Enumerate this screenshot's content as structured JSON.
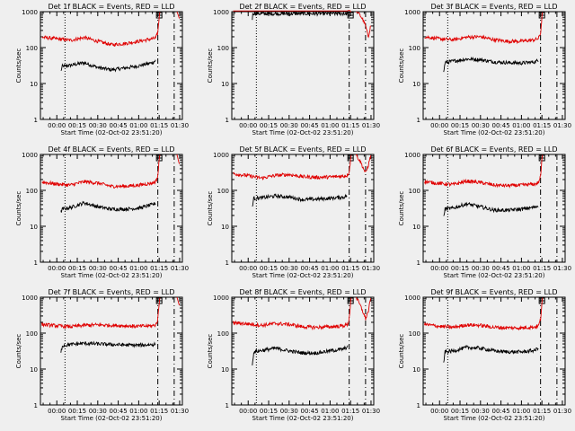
{
  "shared": {
    "xlabel": "Start Time (02-Oct-02 23:51:20)",
    "ylabel": "Counts/sec",
    "ytick_labels": [
      "1",
      "10",
      "100",
      "1000"
    ],
    "xtick_labels": [
      "00:00",
      "00:15",
      "00:30",
      "00:45",
      "01:00",
      "01:15",
      "01:30"
    ],
    "colors": {
      "events": "#000000",
      "lld": "#e00000",
      "background": "#efefef"
    }
  },
  "chart_data": [
    {
      "type": "line",
      "title": "Det 1f BLACK = Events, RED = LLD",
      "xlabel": "Start Time (02-Oct-02 23:51:20)",
      "ylabel": "Counts/sec",
      "x_unit": "minutes after 00:00",
      "x_range": [
        -12,
        92
      ],
      "ylim": [
        1,
        1000
      ],
      "yscale": "log",
      "markers": {
        "dotted": 6,
        "dashed": [
          74,
          86
        ]
      },
      "saa_box_x": 75,
      "series": [
        {
          "name": "Events",
          "color": "#000000",
          "x": [
            3,
            4,
            10,
            20,
            30,
            40,
            50,
            60,
            70,
            72.5
          ],
          "y": [
            22,
            30,
            32,
            38,
            28,
            24,
            27,
            31,
            38,
            44
          ]
        },
        {
          "name": "LLD",
          "color": "#e00000",
          "x": [
            -11,
            0,
            10,
            20,
            30,
            40,
            50,
            60,
            70,
            72.5,
            74,
            75,
            75.5
          ],
          "y": [
            195,
            175,
            160,
            190,
            150,
            120,
            130,
            150,
            175,
            185,
            260,
            700,
            1000
          ]
        },
        {
          "name": "LLD",
          "color": "#e00000",
          "x": [
            88,
            89,
            90
          ],
          "y": [
            1000,
            800,
            600
          ]
        }
      ]
    },
    {
      "type": "line",
      "title": "Det 2f BLACK = Events, RED = LLD",
      "xlabel": "Start Time (02-Oct-02 23:51:20)",
      "ylabel": "Counts/sec",
      "x_unit": "minutes after 00:00",
      "x_range": [
        -12,
        92
      ],
      "ylim": [
        1,
        1000
      ],
      "yscale": "log",
      "markers": {
        "dotted": 6,
        "dashed": [
          74,
          86
        ]
      },
      "saa_box_x": 75,
      "series": [
        {
          "name": "Events",
          "color": "#000000",
          "x": [
            3,
            3.5,
            10,
            20,
            30,
            40,
            50,
            60,
            70,
            73
          ],
          "y": [
            640,
            900,
            880,
            880,
            880,
            880,
            880,
            880,
            880,
            880
          ]
        },
        {
          "name": "LLD",
          "color": "#e00000",
          "x": [
            -11,
            0,
            20,
            40,
            60,
            73,
            74,
            75,
            75.5
          ],
          "y": [
            1050,
            1050,
            1050,
            1050,
            1050,
            1050,
            1150,
            1000,
            1000
          ]
        },
        {
          "name": "LLD",
          "color": "#e00000",
          "x": [
            79,
            80,
            82,
            84,
            86,
            88,
            90
          ],
          "y": [
            1000,
            950,
            800,
            600,
            400,
            200,
            450
          ]
        }
      ]
    },
    {
      "type": "line",
      "title": "Det 3f BLACK = Events, RED = LLD",
      "xlabel": "Start Time (02-Oct-02 23:51:20)",
      "ylabel": "Counts/sec",
      "x_unit": "minutes after 00:00",
      "x_range": [
        -12,
        92
      ],
      "ylim": [
        1,
        1000
      ],
      "yscale": "log",
      "markers": {
        "dotted": 6,
        "dashed": [
          74,
          86
        ]
      },
      "saa_box_x": 75,
      "series": [
        {
          "name": "Events",
          "color": "#000000",
          "x": [
            3,
            4,
            10,
            20,
            30,
            40,
            50,
            60,
            70,
            72.5
          ],
          "y": [
            20,
            38,
            42,
            48,
            46,
            40,
            38,
            37,
            40,
            45
          ]
        },
        {
          "name": "LLD",
          "color": "#e00000",
          "x": [
            -11,
            0,
            10,
            20,
            30,
            40,
            50,
            60,
            70,
            72.5,
            74,
            75,
            75.5
          ],
          "y": [
            200,
            175,
            165,
            195,
            200,
            165,
            150,
            150,
            165,
            180,
            250,
            700,
            1000
          ]
        }
      ]
    },
    {
      "type": "line",
      "title": "Det 4f BLACK = Events, RED = LLD",
      "xlabel": "Start Time (02-Oct-02 23:51:20)",
      "ylabel": "Counts/sec",
      "x_unit": "minutes after 00:00",
      "x_range": [
        -12,
        92
      ],
      "ylim": [
        1,
        1000
      ],
      "yscale": "log",
      "markers": {
        "dotted": 6,
        "dashed": [
          74,
          86
        ]
      },
      "saa_box_x": 75,
      "series": [
        {
          "name": "Events",
          "color": "#000000",
          "x": [
            3,
            4,
            10,
            20,
            30,
            40,
            50,
            60,
            70,
            72.5
          ],
          "y": [
            25,
            30,
            33,
            45,
            35,
            30,
            30,
            32,
            40,
            44
          ]
        },
        {
          "name": "LLD",
          "color": "#e00000",
          "x": [
            -11,
            0,
            10,
            20,
            30,
            40,
            50,
            60,
            70,
            72.5,
            74,
            75,
            75.5
          ],
          "y": [
            170,
            150,
            140,
            175,
            160,
            130,
            130,
            140,
            160,
            175,
            250,
            700,
            1000
          ]
        },
        {
          "name": "LLD",
          "color": "#e00000",
          "x": [
            88,
            89,
            90
          ],
          "y": [
            1000,
            700,
            500
          ]
        }
      ]
    },
    {
      "type": "line",
      "title": "Det 5f BLACK = Events, RED = LLD",
      "xlabel": "Start Time (02-Oct-02 23:51:20)",
      "ylabel": "Counts/sec",
      "x_unit": "minutes after 00:00",
      "x_range": [
        -12,
        92
      ],
      "ylim": [
        1,
        1000
      ],
      "yscale": "log",
      "markers": {
        "dotted": 6,
        "dashed": [
          74,
          86
        ]
      },
      "saa_box_x": 75,
      "series": [
        {
          "name": "Events",
          "color": "#000000",
          "x": [
            3,
            4,
            10,
            20,
            30,
            40,
            50,
            60,
            70,
            72.5
          ],
          "y": [
            35,
            60,
            62,
            70,
            65,
            55,
            57,
            60,
            65,
            70
          ]
        },
        {
          "name": "LLD",
          "color": "#e00000",
          "x": [
            -11,
            0,
            10,
            20,
            30,
            40,
            50,
            60,
            70,
            72.5,
            74,
            75,
            75.5
          ],
          "y": [
            290,
            255,
            220,
            260,
            275,
            240,
            230,
            235,
            250,
            260,
            330,
            700,
            1000
          ]
        },
        {
          "name": "LLD",
          "color": "#e00000",
          "x": [
            79,
            80,
            82,
            84,
            86,
            88,
            90
          ],
          "y": [
            1000,
            850,
            650,
            450,
            300,
            500,
            1000
          ]
        }
      ]
    },
    {
      "type": "line",
      "title": "Det 6f BLACK = Events, RED = LLD",
      "xlabel": "Start Time (02-Oct-02 23:51:20)",
      "ylabel": "Counts/sec",
      "x_unit": "minutes after 00:00",
      "x_range": [
        -12,
        92
      ],
      "ylim": [
        1,
        1000
      ],
      "yscale": "log",
      "markers": {
        "dotted": 6,
        "dashed": [
          74,
          86
        ]
      },
      "saa_box_x": 75,
      "series": [
        {
          "name": "Events",
          "color": "#000000",
          "x": [
            3,
            4,
            10,
            20,
            30,
            40,
            50,
            60,
            70,
            72.5
          ],
          "y": [
            18,
            30,
            32,
            42,
            35,
            28,
            28,
            30,
            34,
            38
          ]
        },
        {
          "name": "LLD",
          "color": "#e00000",
          "x": [
            -11,
            0,
            10,
            20,
            30,
            40,
            50,
            60,
            70,
            72.5,
            74,
            75,
            75.5
          ],
          "y": [
            175,
            155,
            145,
            180,
            165,
            140,
            135,
            140,
            150,
            165,
            240,
            700,
            1000
          ]
        }
      ]
    },
    {
      "type": "line",
      "title": "Det 7f BLACK = Events, RED = LLD",
      "xlabel": "Start Time (02-Oct-02 23:51:20)",
      "ylabel": "Counts/sec",
      "x_unit": "minutes after 00:00",
      "x_range": [
        -12,
        92
      ],
      "ylim": [
        1,
        1000
      ],
      "yscale": "log",
      "markers": {
        "dotted": 6,
        "dashed": [
          74,
          86
        ]
      },
      "saa_box_x": 75,
      "series": [
        {
          "name": "Events",
          "color": "#000000",
          "x": [
            3,
            4,
            10,
            20,
            30,
            40,
            50,
            60,
            70,
            72.5
          ],
          "y": [
            28,
            45,
            48,
            52,
            50,
            48,
            47,
            46,
            48,
            50
          ]
        },
        {
          "name": "LLD",
          "color": "#e00000",
          "x": [
            -11,
            0,
            10,
            20,
            30,
            40,
            50,
            60,
            70,
            72.5,
            74,
            75,
            75.5
          ],
          "y": [
            175,
            160,
            150,
            165,
            170,
            165,
            160,
            155,
            160,
            170,
            240,
            700,
            1000
          ]
        },
        {
          "name": "LLD",
          "color": "#e00000",
          "x": [
            88,
            89,
            90
          ],
          "y": [
            1000,
            750,
            550
          ]
        }
      ]
    },
    {
      "type": "line",
      "title": "Det 8f BLACK = Events, RED = LLD",
      "xlabel": "Start Time (02-Oct-02 23:51:20)",
      "ylabel": "Counts/sec",
      "x_unit": "minutes after 00:00",
      "x_range": [
        -12,
        92
      ],
      "ylim": [
        1,
        1000
      ],
      "yscale": "log",
      "markers": {
        "dotted": 6,
        "dashed": [
          74,
          86
        ]
      },
      "saa_box_x": 75,
      "series": [
        {
          "name": "Events",
          "color": "#000000",
          "x": [
            3,
            4,
            10,
            20,
            30,
            40,
            50,
            60,
            70,
            73
          ],
          "y": [
            12,
            30,
            33,
            38,
            32,
            28,
            28,
            32,
            36,
            42
          ]
        },
        {
          "name": "LLD",
          "color": "#e00000",
          "x": [
            -11,
            0,
            10,
            20,
            30,
            40,
            50,
            60,
            70,
            73,
            74,
            75,
            75.5
          ],
          "y": [
            195,
            180,
            165,
            185,
            175,
            150,
            145,
            150,
            160,
            175,
            250,
            700,
            1000
          ]
        },
        {
          "name": "LLD",
          "color": "#e00000",
          "x": [
            79,
            80,
            82,
            84,
            86,
            88,
            90
          ],
          "y": [
            1000,
            850,
            600,
            400,
            250,
            400,
            1000
          ]
        }
      ]
    },
    {
      "type": "line",
      "title": "Det 9f BLACK = Events, RED = LLD",
      "xlabel": "Start Time (02-Oct-02 23:51:20)",
      "ylabel": "Counts/sec",
      "x_unit": "minutes after 00:00",
      "x_range": [
        -12,
        92
      ],
      "ylim": [
        1,
        1000
      ],
      "yscale": "log",
      "markers": {
        "dotted": 6,
        "dashed": [
          74,
          86
        ]
      },
      "saa_box_x": 75,
      "series": [
        {
          "name": "Events",
          "color": "#000000",
          "x": [
            3,
            4,
            10,
            20,
            30,
            40,
            50,
            60,
            70,
            72.5
          ],
          "y": [
            15,
            30,
            32,
            40,
            38,
            32,
            30,
            30,
            33,
            40
          ]
        },
        {
          "name": "LLD",
          "color": "#e00000",
          "x": [
            -11,
            0,
            10,
            20,
            30,
            40,
            50,
            60,
            70,
            72.5,
            74,
            75,
            75.5
          ],
          "y": [
            175,
            155,
            145,
            170,
            165,
            145,
            140,
            140,
            150,
            160,
            240,
            700,
            1000
          ]
        }
      ]
    }
  ]
}
